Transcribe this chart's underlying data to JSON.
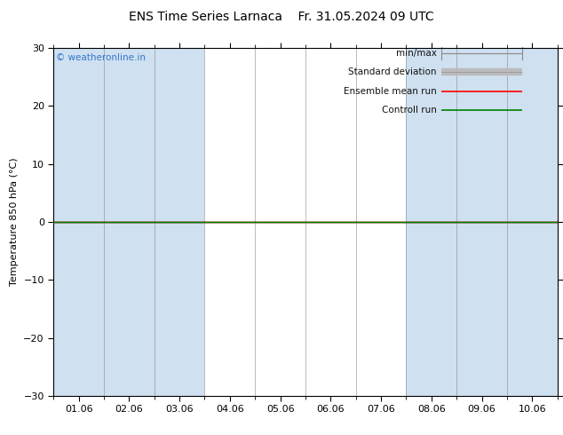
{
  "title": "ENS Time Series Larnaca    Fr. 31.05.2024 09 UTC",
  "ylabel": "Temperature 850 hPa (°C)",
  "ylim": [
    -30,
    30
  ],
  "yticks": [
    -30,
    -20,
    -10,
    0,
    10,
    20,
    30
  ],
  "xlim": [
    0,
    10
  ],
  "xtick_labels": [
    "01.06",
    "02.06",
    "03.06",
    "04.06",
    "05.06",
    "06.06",
    "07.06",
    "08.06",
    "09.06",
    "10.06"
  ],
  "xtick_positions": [
    0.5,
    1.5,
    2.5,
    3.5,
    4.5,
    5.5,
    6.5,
    7.5,
    8.5,
    9.5
  ],
  "shaded_bands": [
    [
      0,
      1
    ],
    [
      1,
      2
    ],
    [
      2,
      3
    ],
    [
      7,
      8
    ],
    [
      8,
      9
    ],
    [
      9,
      10
    ]
  ],
  "band_color": "#cfe0f0",
  "watermark": "© weatheronline.in",
  "watermark_color": "#3377cc",
  "background_color": "#ffffff",
  "plot_bg_color": "#ffffff",
  "zero_line_color": "#000000",
  "ensemble_mean_color": "red",
  "control_run_color": "green",
  "title_fontsize": 10,
  "axis_fontsize": 8,
  "tick_fontsize": 8,
  "legend_items": [
    {
      "label": "min/max",
      "color": "#888888",
      "style": "minmax"
    },
    {
      "label": "Standard deviation",
      "color": "#bbbbbb",
      "style": "thick"
    },
    {
      "label": "Ensemble mean run",
      "color": "red",
      "style": "solid"
    },
    {
      "label": "Controll run",
      "color": "green",
      "style": "solid"
    }
  ]
}
